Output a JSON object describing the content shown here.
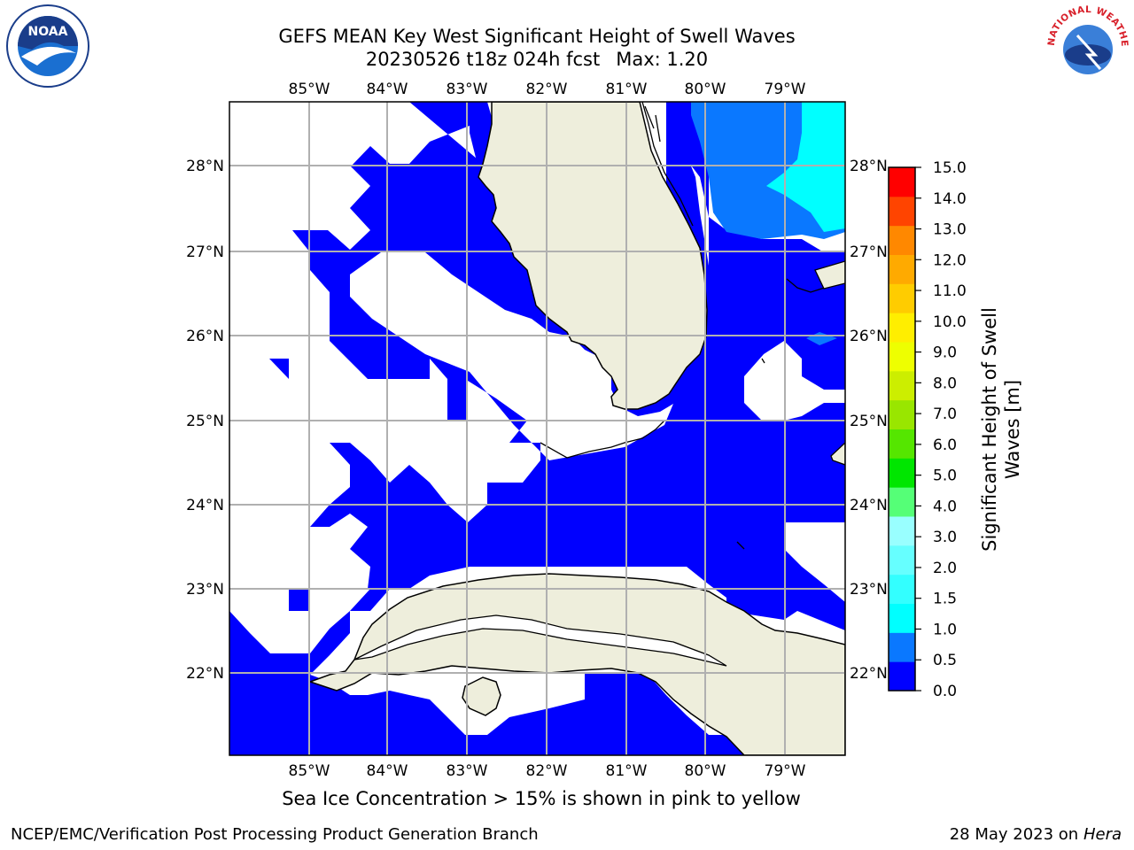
{
  "title": {
    "line1": "GEFS MEAN Key West Significant Height of Swell Waves",
    "run": "20230526 t18z 024h fcst",
    "max": "Max: 1.20"
  },
  "logos": {
    "left": "NOAA",
    "right": "NATIONAL WEATHER SERVICE"
  },
  "map": {
    "lon_labels": [
      "85°W",
      "84°W",
      "83°W",
      "82°W",
      "81°W",
      "80°W",
      "79°W"
    ],
    "lat_labels": [
      "28°N",
      "27°N",
      "26°N",
      "25°N",
      "24°N",
      "23°N",
      "22°N"
    ]
  },
  "colorbar": {
    "label_line1": "Significant Height of Swell",
    "label_line2": "Waves [m]",
    "ticks": [
      "0.0",
      "0.5",
      "1.0",
      "1.5",
      "2.0",
      "3.0",
      "4.0",
      "5.0",
      "6.0",
      "7.0",
      "8.0",
      "9.0",
      "10.0",
      "11.0",
      "12.0",
      "13.0",
      "14.0",
      "15.0"
    ],
    "colors": [
      "#0000ff",
      "#0a78ff",
      "#00ffff",
      "#33ffff",
      "#66ffff",
      "#99ffff",
      "#55ff77",
      "#00e600",
      "#55e600",
      "#99e600",
      "#ccee00",
      "#eeff00",
      "#ffee00",
      "#ffcc00",
      "#ffaa00",
      "#ff8800",
      "#ff4400",
      "#ff0000"
    ]
  },
  "note": "Sea Ice Concentration > 15% is shown in pink to yellow",
  "footer": {
    "left": "NCEP/EMC/Verification Post Processing Product Generation Branch",
    "date": "28 May 2023 on",
    "host": "Hera"
  }
}
